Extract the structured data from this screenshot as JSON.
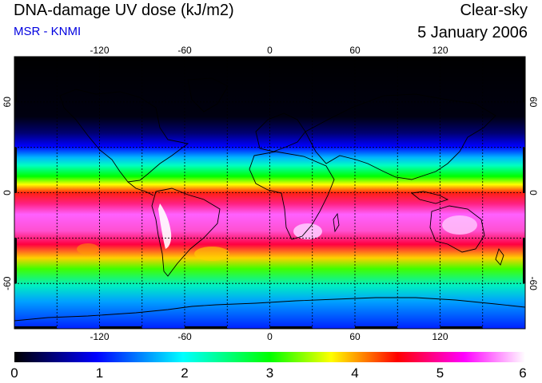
{
  "header": {
    "title": "DNA-damage UV dose (kJ/m2)",
    "subtitle": "MSR - KNMI",
    "condition": "Clear-sky",
    "date": "5 January 2006"
  },
  "map": {
    "projection": "equirectangular",
    "lon_range": [
      -180,
      180
    ],
    "lat_range": [
      -90,
      90
    ],
    "lon_ticks": [
      -120,
      -60,
      0,
      60,
      120
    ],
    "lat_ticks": [
      60,
      0,
      -60
    ],
    "lon_tick_labels": [
      "-120",
      "-60",
      "0",
      "60",
      "120"
    ],
    "lat_tick_labels": [
      "60",
      "0",
      "-60"
    ],
    "grid_spacing_deg": 30,
    "grid": true,
    "coastlines": true
  },
  "colorbar": {
    "min": 0,
    "max": 6,
    "tick_values": [
      0,
      1,
      2,
      3,
      4,
      5,
      6
    ],
    "tick_labels": [
      "0",
      "1",
      "2",
      "3",
      "4",
      "5",
      "6"
    ],
    "colors": [
      "#000000",
      "#0000ff",
      "#00ffff",
      "#00ff00",
      "#ffff00",
      "#ff0000",
      "#ff00ff",
      "#ffffff"
    ]
  }
}
